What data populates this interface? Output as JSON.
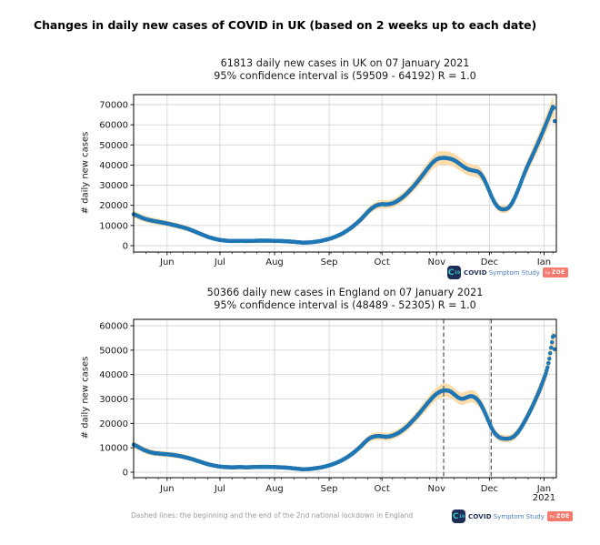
{
  "page_title": "Changes in daily new cases of COVID in UK (based on 2 weeks up to each date)",
  "footnote": "Dashed lines: the beginning and the end of the 2nd national lockdown in England",
  "branding": {
    "icon_c": "C",
    "icon_19": "19",
    "covid": "COVID",
    "symptom_study": "Symptom Study",
    "by": "by",
    "zoe": "ZOE"
  },
  "colors": {
    "dots": "#1f77b4",
    "band": "#fbdcaa",
    "grid": "#d6d6d6",
    "spine": "#000000",
    "dashed": "#5a5a5a",
    "tick_text": "#1a1a1a",
    "footnote": "#9b9b9b"
  },
  "chart_data": [
    {
      "type": "scatter",
      "region": "UK",
      "title_line1": "61813 daily new cases in UK on 07 January 2021",
      "title_line2": "95% confidence interval is (59509 - 64192) R = 1.0",
      "headline_value": 61813,
      "ci_low": 59509,
      "ci_high": 64192,
      "r_value": "1.0",
      "date": "07 January 2021",
      "ylabel": "# daily new cases",
      "ylim": [
        0,
        70000
      ],
      "yticks": [
        0,
        10000,
        20000,
        30000,
        40000,
        50000,
        60000,
        70000
      ],
      "x_total_days": 240,
      "xticks": [
        {
          "label": "Jun",
          "day": 19
        },
        {
          "label": "Jul",
          "day": 49
        },
        {
          "label": "Aug",
          "day": 80
        },
        {
          "label": "Sep",
          "day": 111
        },
        {
          "label": "Oct",
          "day": 141
        },
        {
          "label": "Nov",
          "day": 172
        },
        {
          "label": "Dec",
          "day": 202
        },
        {
          "label": "Jan",
          "day": 233,
          "year": "2021"
        }
      ],
      "minor_tick_every_days": 7,
      "band_frac": 0.06,
      "band_base": 800,
      "dashed_days": [],
      "points": [
        [
          0,
          15600
        ],
        [
          2,
          14900
        ],
        [
          4,
          14100
        ],
        [
          6,
          13400
        ],
        [
          8,
          12900
        ],
        [
          10,
          12500
        ],
        [
          13,
          12000
        ],
        [
          16,
          11500
        ],
        [
          19,
          11000
        ],
        [
          22,
          10400
        ],
        [
          25,
          9800
        ],
        [
          28,
          9100
        ],
        [
          31,
          8300
        ],
        [
          34,
          7300
        ],
        [
          37,
          6200
        ],
        [
          40,
          5100
        ],
        [
          43,
          4100
        ],
        [
          46,
          3400
        ],
        [
          49,
          2800
        ],
        [
          52,
          2500
        ],
        [
          56,
          2300
        ],
        [
          60,
          2400
        ],
        [
          64,
          2300
        ],
        [
          68,
          2400
        ],
        [
          72,
          2500
        ],
        [
          76,
          2500
        ],
        [
          80,
          2400
        ],
        [
          84,
          2300
        ],
        [
          88,
          2100
        ],
        [
          92,
          1800
        ],
        [
          96,
          1500
        ],
        [
          100,
          1600
        ],
        [
          103,
          1900
        ],
        [
          106,
          2300
        ],
        [
          109,
          2900
        ],
        [
          112,
          3600
        ],
        [
          115,
          4600
        ],
        [
          118,
          5800
        ],
        [
          121,
          7300
        ],
        [
          124,
          9200
        ],
        [
          127,
          11400
        ],
        [
          129,
          13000
        ],
        [
          131,
          14900
        ],
        [
          133,
          16800
        ],
        [
          135,
          18400
        ],
        [
          137,
          19600
        ],
        [
          139,
          20300
        ],
        [
          141,
          20600
        ],
        [
          143,
          20500
        ],
        [
          145,
          20600
        ],
        [
          147,
          21000
        ],
        [
          149,
          21800
        ],
        [
          151,
          22900
        ],
        [
          153,
          24200
        ],
        [
          155,
          25800
        ],
        [
          157,
          27600
        ],
        [
          159,
          29500
        ],
        [
          161,
          31600
        ],
        [
          163,
          33800
        ],
        [
          165,
          36100
        ],
        [
          167,
          38400
        ],
        [
          169,
          40500
        ],
        [
          170,
          41400
        ],
        [
          171,
          42200
        ],
        [
          172,
          42800
        ],
        [
          173,
          43200
        ],
        [
          174,
          43450
        ],
        [
          176,
          43600
        ],
        [
          178,
          43450
        ],
        [
          180,
          43100
        ],
        [
          182,
          42400
        ],
        [
          184,
          41300
        ],
        [
          186,
          40000
        ],
        [
          188,
          38800
        ],
        [
          190,
          37900
        ],
        [
          192,
          37400
        ],
        [
          194,
          37100
        ],
        [
          195,
          36900
        ],
        [
          196,
          36400
        ],
        [
          197,
          35600
        ],
        [
          198,
          34400
        ],
        [
          199,
          32900
        ],
        [
          200,
          31100
        ],
        [
          201,
          29100
        ],
        [
          202,
          27000
        ],
        [
          203,
          24900
        ],
        [
          204,
          23000
        ],
        [
          205,
          21300
        ],
        [
          206,
          20000
        ],
        [
          207,
          19000
        ],
        [
          208,
          18400
        ],
        [
          209,
          18100
        ],
        [
          210,
          18000
        ],
        [
          211,
          18100
        ],
        [
          212,
          18400
        ],
        [
          213,
          19000
        ],
        [
          214,
          20000
        ],
        [
          215,
          21400
        ],
        [
          216,
          23100
        ],
        [
          217,
          25000
        ],
        [
          218,
          27100
        ],
        [
          219,
          29300
        ],
        [
          220,
          31600
        ],
        [
          221,
          34000
        ],
        [
          223,
          38300
        ],
        [
          225,
          42100
        ],
        [
          227,
          45900
        ],
        [
          229,
          49800
        ],
        [
          231,
          53800
        ],
        [
          233,
          58000
        ],
        [
          235,
          62300
        ],
        [
          236,
          64500
        ],
        [
          237,
          66700
        ],
        [
          238,
          68900
        ],
        [
          238.4,
          69400
        ],
        [
          238.7,
          66500
        ],
        [
          239,
          61813
        ]
      ]
    },
    {
      "type": "scatter",
      "region": "England",
      "title_line1": "50366 daily new cases in England on 07 January 2021",
      "title_line2": "95% confidence interval is (48489 - 52305) R = 1.0",
      "headline_value": 50366,
      "ci_low": 48489,
      "ci_high": 52305,
      "r_value": "1.0",
      "date": "07 January 2021",
      "ylabel": "# daily new cases",
      "ylim": [
        0,
        60000
      ],
      "yticks": [
        0,
        10000,
        20000,
        30000,
        40000,
        50000,
        60000
      ],
      "x_total_days": 240,
      "xticks": [
        {
          "label": "Jun",
          "day": 19
        },
        {
          "label": "Jul",
          "day": 49
        },
        {
          "label": "Aug",
          "day": 80
        },
        {
          "label": "Sep",
          "day": 111
        },
        {
          "label": "Oct",
          "day": 141
        },
        {
          "label": "Nov",
          "day": 172
        },
        {
          "label": "Dec",
          "day": 202
        },
        {
          "label": "Jan",
          "day": 233,
          "year": "2021"
        }
      ],
      "minor_tick_every_days": 7,
      "band_frac": 0.06,
      "band_base": 700,
      "dashed_days": [
        176,
        203
      ],
      "dashed_meaning": "start and end of 2nd national lockdown in England",
      "points": [
        [
          0,
          11300
        ],
        [
          2,
          10600
        ],
        [
          4,
          9800
        ],
        [
          6,
          9100
        ],
        [
          8,
          8500
        ],
        [
          10,
          8100
        ],
        [
          12,
          7800
        ],
        [
          15,
          7600
        ],
        [
          18,
          7400
        ],
        [
          21,
          7200
        ],
        [
          24,
          6900
        ],
        [
          27,
          6500
        ],
        [
          30,
          6000
        ],
        [
          33,
          5400
        ],
        [
          36,
          4700
        ],
        [
          39,
          4000
        ],
        [
          42,
          3300
        ],
        [
          45,
          2800
        ],
        [
          48,
          2400
        ],
        [
          52,
          2100
        ],
        [
          56,
          2000
        ],
        [
          60,
          2100
        ],
        [
          64,
          2000
        ],
        [
          68,
          2100
        ],
        [
          72,
          2200
        ],
        [
          76,
          2200
        ],
        [
          80,
          2100
        ],
        [
          84,
          2000
        ],
        [
          88,
          1800
        ],
        [
          92,
          1500
        ],
        [
          96,
          1200
        ],
        [
          100,
          1300
        ],
        [
          103,
          1600
        ],
        [
          106,
          1900
        ],
        [
          109,
          2400
        ],
        [
          112,
          3000
        ],
        [
          115,
          3800
        ],
        [
          118,
          4800
        ],
        [
          121,
          6000
        ],
        [
          124,
          7500
        ],
        [
          127,
          9300
        ],
        [
          129,
          10600
        ],
        [
          131,
          12100
        ],
        [
          133,
          13400
        ],
        [
          135,
          14300
        ],
        [
          137,
          14700
        ],
        [
          139,
          14800
        ],
        [
          141,
          14700
        ],
        [
          143,
          14500
        ],
        [
          145,
          14600
        ],
        [
          147,
          15000
        ],
        [
          149,
          15600
        ],
        [
          151,
          16400
        ],
        [
          153,
          17400
        ],
        [
          155,
          18600
        ],
        [
          157,
          20000
        ],
        [
          159,
          21500
        ],
        [
          161,
          23100
        ],
        [
          163,
          24800
        ],
        [
          165,
          26600
        ],
        [
          167,
          28400
        ],
        [
          169,
          30000
        ],
        [
          170,
          30800
        ],
        [
          171,
          31500
        ],
        [
          172,
          32100
        ],
        [
          173,
          32600
        ],
        [
          174,
          33000
        ],
        [
          175,
          33300
        ],
        [
          176,
          33500
        ],
        [
          178,
          33500
        ],
        [
          179,
          33300
        ],
        [
          180,
          33000
        ],
        [
          181,
          32500
        ],
        [
          182,
          31900
        ],
        [
          183,
          31300
        ],
        [
          184,
          30700
        ],
        [
          185,
          30300
        ],
        [
          186,
          30100
        ],
        [
          187,
          30100
        ],
        [
          188,
          30300
        ],
        [
          189,
          30600
        ],
        [
          190,
          30900
        ],
        [
          191,
          31100
        ],
        [
          192,
          31100
        ],
        [
          193,
          30900
        ],
        [
          194,
          30500
        ],
        [
          195,
          29900
        ],
        [
          196,
          29000
        ],
        [
          197,
          27900
        ],
        [
          198,
          26600
        ],
        [
          199,
          25100
        ],
        [
          200,
          23500
        ],
        [
          201,
          21800
        ],
        [
          202,
          20100
        ],
        [
          203,
          18500
        ],
        [
          204,
          17100
        ],
        [
          205,
          16000
        ],
        [
          206,
          15200
        ],
        [
          207,
          14600
        ],
        [
          208,
          14100
        ],
        [
          209,
          13900
        ],
        [
          210,
          13750
        ],
        [
          212,
          13700
        ],
        [
          214,
          13900
        ],
        [
          216,
          14700
        ],
        [
          218,
          16200
        ],
        [
          220,
          18300
        ],
        [
          222,
          20800
        ],
        [
          224,
          23500
        ],
        [
          226,
          26400
        ],
        [
          228,
          29500
        ],
        [
          230,
          32800
        ],
        [
          232,
          36400
        ],
        [
          234,
          40400
        ],
        [
          235,
          42900
        ],
        [
          236,
          46500
        ],
        [
          237,
          51000
        ],
        [
          238,
          55400
        ],
        [
          238.4,
          56700
        ],
        [
          238.7,
          54200
        ],
        [
          239,
          50366
        ]
      ]
    }
  ]
}
